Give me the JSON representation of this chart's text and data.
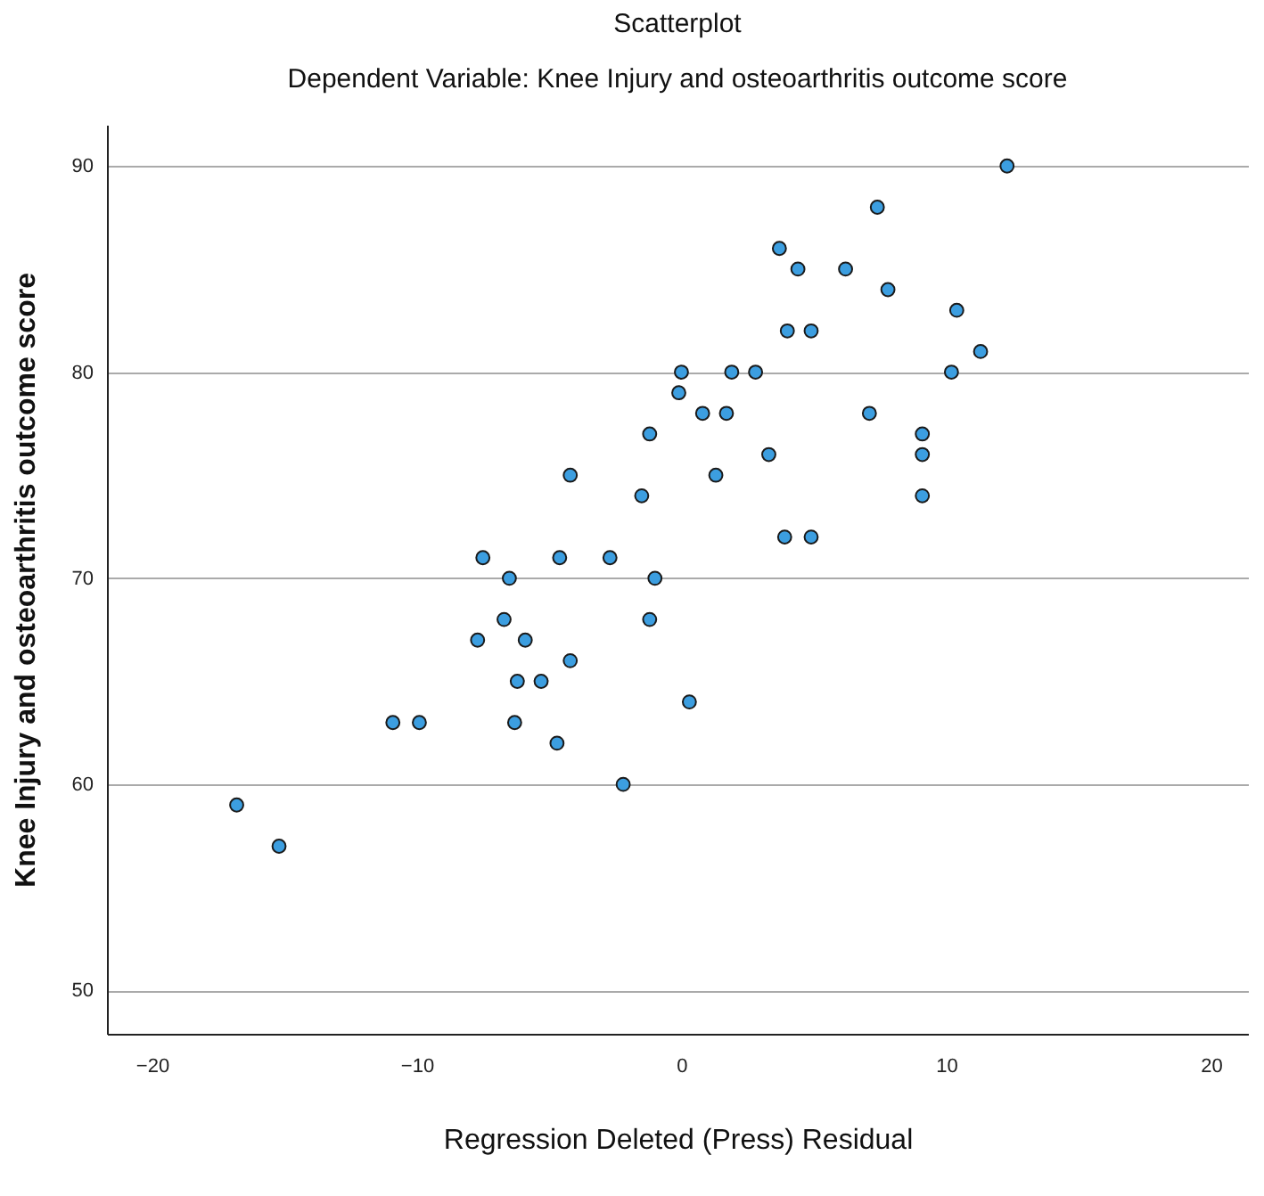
{
  "chart_data": {
    "type": "scatter",
    "title": "Scatterplot",
    "subtitle": "Dependent Variable: Knee Injury and osteoarthritis outcome score",
    "xlabel": "Regression Deleted (Press) Residual",
    "ylabel": "Knee Injury and osteoarthritis outcome score",
    "x": [
      -16.8,
      -15.2,
      -10.9,
      -9.9,
      -7.5,
      -7.7,
      -6.7,
      -6.5,
      -6.2,
      -6.3,
      -5.9,
      -5.3,
      -4.7,
      -4.6,
      -4.2,
      -4.2,
      -2.7,
      -2.2,
      -1.5,
      -1.2,
      -1.2,
      -1.0,
      -0.1,
      0,
      0.3,
      0.8,
      1.3,
      1.7,
      1.9,
      2.8,
      3.3,
      3.7,
      4.0,
      3.9,
      4.4,
      4.9,
      4.9,
      6.2,
      7.1,
      7.4,
      7.8,
      9.1,
      9.1,
      9.1,
      10.2,
      10.4,
      11.3,
      12.3
    ],
    "series": [
      {
        "color": "#3c9ee0",
        "values": [
          59,
          57,
          63,
          63,
          71,
          67,
          68,
          70,
          65,
          63,
          67,
          65,
          62,
          71,
          75,
          66,
          71,
          60,
          74,
          77,
          68,
          70,
          79,
          80,
          64,
          78,
          75,
          78,
          80,
          80,
          76,
          86,
          82,
          72,
          85,
          82,
          72,
          85,
          78,
          88,
          84,
          77,
          76,
          74,
          80,
          83,
          81,
          90
        ]
      }
    ],
    "xlim": [
      -21.7,
      21.4
    ],
    "ylim": [
      47.9,
      92
    ],
    "xticks": [
      -20,
      -10,
      0,
      10,
      20
    ],
    "yticks": [
      50,
      60,
      70,
      80,
      90
    ],
    "grid": "y",
    "marker": "circle"
  }
}
